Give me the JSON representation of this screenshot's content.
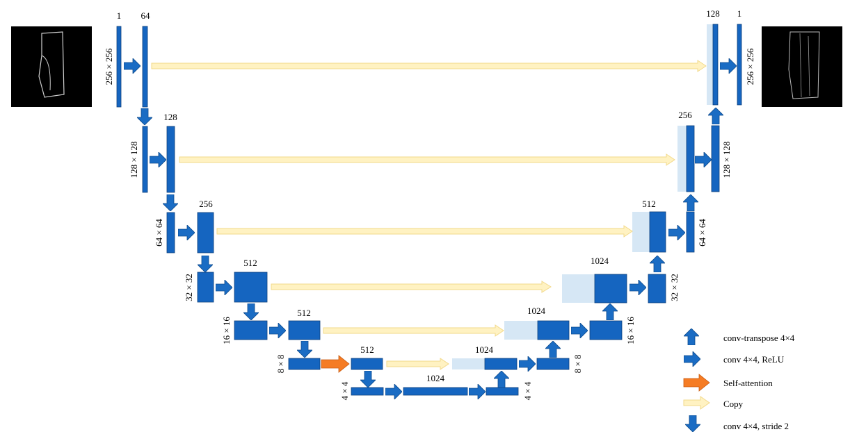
{
  "encoder": {
    "level1": {
      "ch_in": "1",
      "ch_out": "64",
      "size": "256 × 256"
    },
    "level2": {
      "ch": "128",
      "size": "128 × 128"
    },
    "level3": {
      "ch": "256",
      "size": "64 × 64"
    },
    "level4": {
      "ch": "512",
      "size": "32 × 32"
    },
    "level5": {
      "ch": "512",
      "size": "16 × 16"
    },
    "level6": {
      "ch": "512",
      "size": "8 × 8"
    },
    "bottleneck": {
      "ch": "1024",
      "size": "4 × 4"
    }
  },
  "decoder": {
    "level1": {
      "ch_in": "128",
      "ch_out": "1",
      "size": "256 × 256"
    },
    "level2": {
      "ch": "256",
      "size": "128 × 128"
    },
    "level3": {
      "ch": "512",
      "size": "64 × 64"
    },
    "level4": {
      "ch": "1024",
      "size": "32 × 32"
    },
    "level5": {
      "ch": "1024",
      "size": "16 × 16"
    },
    "level6": {
      "ch": "1024",
      "size": "8 × 8"
    },
    "bottleneck": {
      "size": "4 × 4"
    }
  },
  "legend": {
    "conv_transpose": "conv-transpose  4×4",
    "conv_relu": "conv  4×4,  ReLU",
    "self_attention": "Self-attention",
    "copy": "Copy",
    "conv_stride": "conv  4×4,  stride  2"
  },
  "colors": {
    "block": "#1565c0",
    "copied": "#d6e7f5",
    "copy_arrow": "#fff2c2",
    "attention": "#f57c24"
  }
}
